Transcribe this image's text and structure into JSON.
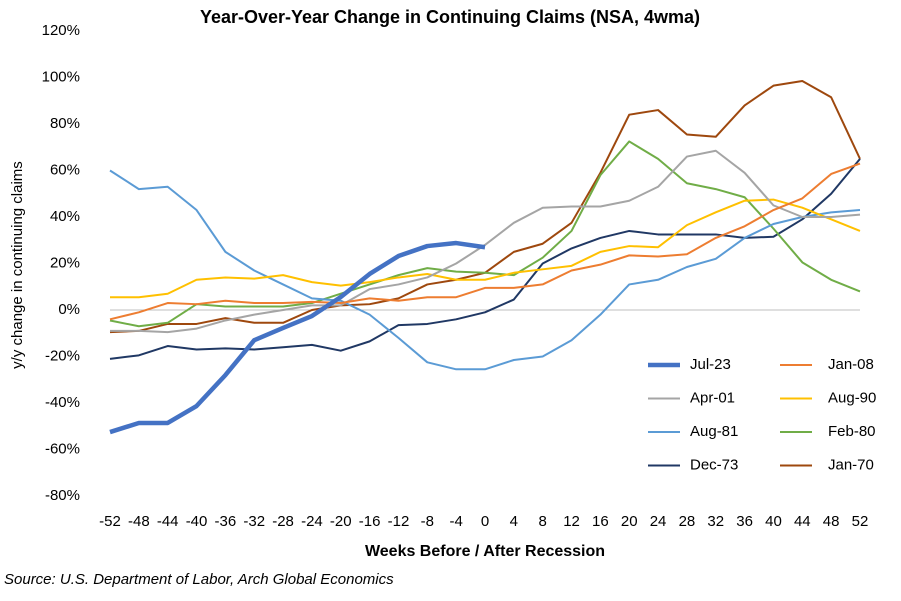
{
  "chart_data": {
    "type": "line",
    "title": "Year-Over-Year Change in Continuing Claims (NSA, 4wma)",
    "xlabel": "Weeks Before / After Recession",
    "ylabel": "y/y change in continuing claims",
    "source": "Source: U.S. Department of Labor, Arch Global Economics",
    "x": [
      -52,
      -48,
      -44,
      -40,
      -36,
      -32,
      -28,
      -24,
      -20,
      -16,
      -12,
      -8,
      -4,
      0,
      4,
      8,
      12,
      16,
      20,
      24,
      28,
      32,
      36,
      40,
      44,
      48,
      52
    ],
    "xlim": [
      -52,
      52
    ],
    "xticks": [
      -52,
      -48,
      -44,
      -40,
      -36,
      -32,
      -28,
      -24,
      -20,
      -16,
      -12,
      -8,
      -4,
      0,
      4,
      8,
      12,
      16,
      20,
      24,
      28,
      32,
      36,
      40,
      44,
      48,
      52
    ],
    "ylim": [
      -80,
      120
    ],
    "yticks": [
      {
        "value": -80,
        "label": "-80%"
      },
      {
        "value": -60,
        "label": "-60%"
      },
      {
        "value": -40,
        "label": "-40%"
      },
      {
        "value": -20,
        "label": "-20%"
      },
      {
        "value": 0,
        "label": "0%"
      },
      {
        "value": 20,
        "label": "20%"
      },
      {
        "value": 40,
        "label": "40%"
      },
      {
        "value": 60,
        "label": "60%"
      },
      {
        "value": 80,
        "label": "80%"
      },
      {
        "value": 100,
        "label": "100%"
      },
      {
        "value": 120,
        "label": "120%"
      }
    ],
    "series": [
      {
        "name": "Jul-23",
        "color": "#4472c4",
        "values": [
          -52.5,
          -48.6,
          -48.6,
          -41.3,
          -28,
          -13,
          -7.7,
          -2.6,
          5.6,
          15.5,
          23.2,
          27.5,
          28.8,
          27,
          null,
          null,
          null,
          null,
          null,
          null,
          null,
          null,
          null,
          null,
          null,
          null,
          null
        ]
      },
      {
        "name": "Jan-08",
        "color": "#ed7d31",
        "values": [
          -4,
          -1,
          3,
          2.5,
          4,
          3,
          3,
          3.5,
          3,
          5,
          4,
          5.5,
          5.5,
          9.5,
          9.5,
          11,
          17,
          19.5,
          23.5,
          23,
          24,
          31,
          36,
          43,
          48,
          58.5,
          63
        ]
      },
      {
        "name": "Apr-01",
        "color": "#a5a5a5",
        "values": [
          -9,
          -9,
          -9.5,
          -8,
          -4.5,
          -2,
          0,
          2,
          2,
          9,
          11,
          14,
          20,
          28,
          37.5,
          44,
          44.5,
          44.5,
          47,
          53,
          66,
          68.5,
          59,
          45,
          40,
          40,
          41
        ]
      },
      {
        "name": "Aug-90",
        "color": "#ffc000",
        "values": [
          5.5,
          5.5,
          7,
          13,
          14,
          13.5,
          15,
          12,
          10.5,
          12,
          14,
          15.5,
          13,
          13,
          16,
          17.5,
          19,
          25,
          27.5,
          27,
          36.5,
          42,
          47,
          47.5,
          44,
          39,
          34
        ]
      },
      {
        "name": "Aug-81",
        "color": "#5b9bd5",
        "values": [
          60,
          52,
          53,
          43,
          25,
          17,
          11,
          5,
          4,
          -2,
          -12,
          -22.5,
          -25.5,
          -25.5,
          -21.5,
          -20,
          -13,
          -2,
          11,
          13,
          18.5,
          22,
          31,
          37,
          40,
          42,
          43
        ]
      },
      {
        "name": "Feb-80",
        "color": "#70ad47",
        "values": [
          -4.5,
          -7,
          -5.5,
          2.5,
          1.5,
          1.5,
          1.5,
          3,
          7,
          11,
          15,
          18,
          16.5,
          16,
          15,
          22.5,
          34,
          58,
          72.5,
          65,
          54.5,
          52,
          48.5,
          35,
          20.5,
          13,
          8
        ]
      },
      {
        "name": "Dec-73",
        "color": "#203864",
        "values": [
          -21,
          -19.5,
          -15.5,
          -17,
          -16.5,
          -17,
          -16,
          -15,
          -17.5,
          -13.5,
          -6.5,
          -6,
          -4,
          -1,
          4.5,
          20,
          26.5,
          31,
          34,
          32.5,
          32.5,
          32.5,
          31,
          31.5,
          39,
          50,
          65
        ]
      },
      {
        "name": "Jan-70",
        "color": "#9e480e",
        "values": [
          -9.5,
          -9,
          -6,
          -6,
          -3.5,
          -5.5,
          -5.5,
          0,
          2,
          2.5,
          5,
          11,
          13,
          16,
          25,
          28.5,
          37.5,
          59,
          84,
          86,
          75.5,
          74.5,
          88,
          96.5,
          98.5,
          91.5,
          65
        ]
      }
    ]
  }
}
